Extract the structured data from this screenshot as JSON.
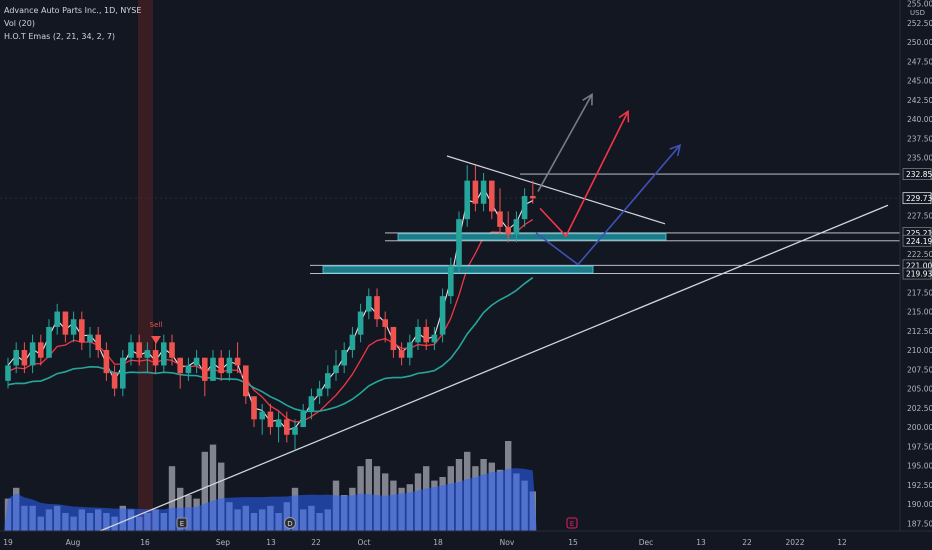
{
  "legend": {
    "symbol": "Advance Auto Parts Inc., 1D, NYSE",
    "volume": "Vol (20)",
    "ema": "H.O.T Emas (2, 21, 34, 2, 7)"
  },
  "chart_data": {
    "type": "candlestick",
    "currency": "USD",
    "ylim": [
      186.5,
      255.2
    ],
    "yticks": [
      "255.00",
      "252.50",
      "250.00",
      "247.50",
      "245.00",
      "242.50",
      "240.00",
      "237.50",
      "235.00",
      "232.50",
      "230.00",
      "227.50",
      "225.00",
      "222.50",
      "220.00",
      "217.50",
      "215.00",
      "212.50",
      "210.00",
      "207.50",
      "205.00",
      "202.50",
      "200.00",
      "197.50",
      "195.00",
      "192.50",
      "190.00",
      "187.50"
    ],
    "xticks": [
      "19",
      "Aug",
      "16",
      "Sep",
      "13",
      "22",
      "Oct",
      "18",
      "Nov",
      "15",
      "Dec",
      "13",
      "22",
      "2022",
      "12"
    ],
    "price_labels": [
      {
        "value": 232.85,
        "text": "232.85",
        "style": "level"
      },
      {
        "value": 229.73,
        "text": "229.73",
        "style": "last"
      },
      {
        "value": 225.21,
        "text": "225.21",
        "style": "level"
      },
      {
        "value": 224.19,
        "text": "224.19",
        "style": "level"
      },
      {
        "value": 221.0,
        "text": "221.00",
        "style": "level"
      },
      {
        "value": 219.93,
        "text": "219.93",
        "style": "level"
      }
    ],
    "annotations": [
      {
        "text": "Sell",
        "near": "Aug 16"
      }
    ],
    "event_markers": [
      "E",
      "D",
      "E"
    ],
    "candles": [
      [
        206,
        209,
        205,
        208
      ],
      [
        208,
        211,
        207,
        210
      ],
      [
        210,
        211,
        207,
        208
      ],
      [
        208,
        212,
        207,
        211
      ],
      [
        211,
        212,
        208,
        209
      ],
      [
        209,
        214,
        209,
        213
      ],
      [
        213,
        216,
        212,
        215
      ],
      [
        215,
        215,
        211,
        212
      ],
      [
        212,
        215,
        211,
        214
      ],
      [
        214,
        215,
        210,
        211
      ],
      [
        211,
        213,
        209,
        212
      ],
      [
        212,
        213,
        209,
        210
      ],
      [
        210,
        211,
        206,
        207
      ],
      [
        207,
        208,
        204,
        205
      ],
      [
        205,
        210,
        204,
        209
      ],
      [
        209,
        212,
        208,
        211
      ],
      [
        211,
        212,
        208,
        209
      ],
      [
        209,
        211,
        207,
        210
      ],
      [
        210,
        211,
        207,
        208
      ],
      [
        208,
        212,
        207,
        211
      ],
      [
        211,
        212,
        208,
        209
      ],
      [
        209,
        209,
        205,
        207
      ],
      [
        207,
        209,
        206,
        208
      ],
      [
        208,
        210,
        207,
        209
      ],
      [
        209,
        209,
        204,
        206
      ],
      [
        206,
        210,
        206,
        209
      ],
      [
        209,
        210,
        206,
        207
      ],
      [
        207,
        210,
        206,
        209
      ],
      [
        209,
        211,
        207,
        208
      ],
      [
        208,
        208,
        203,
        204
      ],
      [
        204,
        204,
        200,
        201
      ],
      [
        201,
        203,
        199,
        202
      ],
      [
        202,
        203,
        199,
        200
      ],
      [
        200,
        202,
        198,
        201
      ],
      [
        201,
        202,
        198,
        199
      ],
      [
        199,
        201,
        197,
        200
      ],
      [
        200,
        203,
        200,
        202
      ],
      [
        202,
        205,
        201,
        204
      ],
      [
        204,
        206,
        203,
        205
      ],
      [
        205,
        208,
        204,
        207
      ],
      [
        207,
        210,
        206,
        208
      ],
      [
        208,
        211,
        207,
        210
      ],
      [
        210,
        213,
        209,
        212
      ],
      [
        212,
        216,
        211,
        215
      ],
      [
        215,
        218,
        214,
        217
      ],
      [
        217,
        218,
        213,
        214
      ],
      [
        214,
        215,
        211,
        213
      ],
      [
        213,
        213,
        209,
        210
      ],
      [
        210,
        211,
        208,
        209
      ],
      [
        209,
        212,
        208,
        211
      ],
      [
        211,
        214,
        210,
        213
      ],
      [
        213,
        214,
        210,
        211
      ],
      [
        211,
        213,
        210,
        212
      ],
      [
        212,
        218,
        211,
        217
      ],
      [
        217,
        222,
        216,
        221
      ],
      [
        221,
        228,
        220,
        227
      ],
      [
        227,
        234,
        226,
        232
      ],
      [
        232,
        234,
        228,
        229
      ],
      [
        229,
        233,
        228,
        232
      ],
      [
        232,
        232,
        227,
        228
      ],
      [
        228,
        231,
        225,
        226
      ],
      [
        226,
        228,
        224,
        225
      ],
      [
        225,
        228,
        224,
        227
      ],
      [
        227,
        231,
        226,
        230
      ],
      [
        230,
        232,
        229,
        229.7
      ]
    ],
    "volume": [
      185,
      200,
      175,
      175,
      160,
      170,
      175,
      165,
      160,
      170,
      165,
      170,
      165,
      160,
      175,
      170,
      160,
      165,
      170,
      165,
      230,
      200,
      190,
      185,
      250,
      260,
      235,
      180,
      170,
      175,
      165,
      170,
      175,
      165,
      180,
      200,
      170,
      175,
      165,
      170,
      210,
      190,
      200,
      230,
      240,
      230,
      220,
      210,
      200,
      205,
      220,
      230,
      210,
      215,
      230,
      240,
      250,
      230,
      240,
      235,
      225,
      265,
      220,
      210,
      195
    ]
  }
}
